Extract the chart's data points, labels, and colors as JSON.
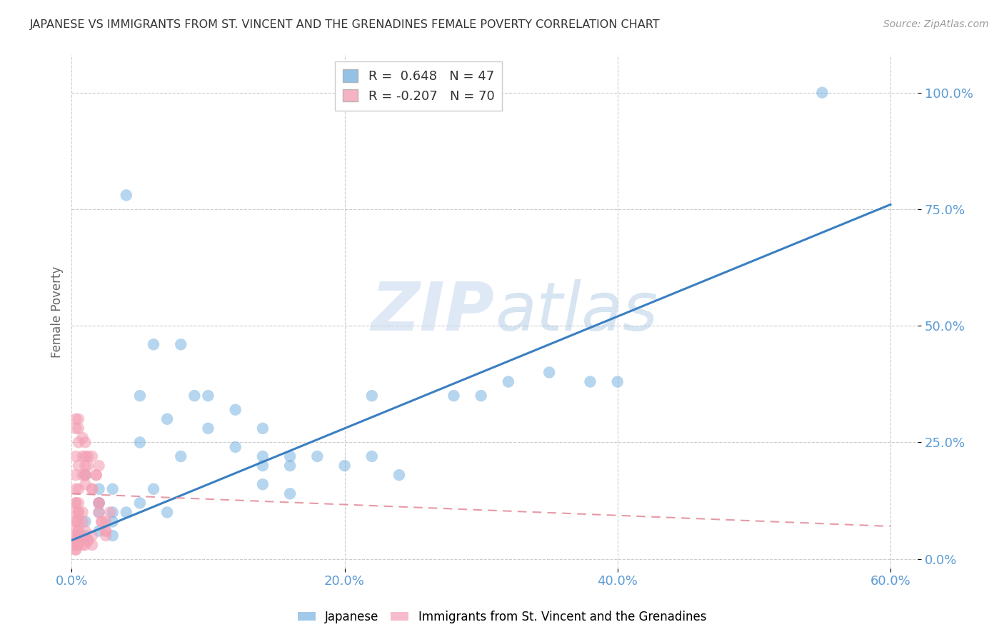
{
  "title": "JAPANESE VS IMMIGRANTS FROM ST. VINCENT AND THE GRENADINES FEMALE POVERTY CORRELATION CHART",
  "source": "Source: ZipAtlas.com",
  "xlabel_ticks": [
    "0.0%",
    "20.0%",
    "40.0%",
    "60.0%"
  ],
  "ylabel_ticks": [
    "0.0%",
    "25.0%",
    "50.0%",
    "75.0%",
    "100.0%"
  ],
  "ylabel": "Female Poverty",
  "xlim": [
    0.0,
    0.62
  ],
  "ylim": [
    -0.02,
    1.08
  ],
  "watermark_zip": "ZIP",
  "watermark_atlas": "atlas",
  "legend_r1_label": "R = ",
  "legend_r1_val": "0.648",
  "legend_r1_n": "N = 47",
  "legend_r2_label": "R = ",
  "legend_r2_val": "-0.207",
  "legend_r2_n": "N = 70",
  "blue_color": "#7ab3e0",
  "pink_color": "#f4a0b5",
  "line_blue": "#3a7fc1",
  "line_pink": "#e08090",
  "japanese_x": [
    0.02,
    0.04,
    0.01,
    0.02,
    0.03,
    0.05,
    0.02,
    0.01,
    0.03,
    0.02,
    0.07,
    0.08,
    0.05,
    0.09,
    0.1,
    0.12,
    0.14,
    0.08,
    0.1,
    0.12,
    0.14,
    0.16,
    0.14,
    0.16,
    0.18,
    0.2,
    0.22,
    0.28,
    0.3,
    0.32,
    0.35,
    0.38,
    0.4,
    0.22,
    0.24,
    0.01,
    0.02,
    0.03,
    0.04,
    0.05,
    0.06,
    0.07,
    0.55,
    0.14,
    0.16,
    0.06,
    0.03
  ],
  "japanese_y": [
    0.15,
    0.78,
    0.18,
    0.12,
    0.08,
    0.25,
    0.1,
    0.05,
    0.15,
    0.06,
    0.3,
    0.46,
    0.35,
    0.35,
    0.35,
    0.32,
    0.22,
    0.22,
    0.28,
    0.24,
    0.2,
    0.22,
    0.28,
    0.2,
    0.22,
    0.2,
    0.35,
    0.35,
    0.35,
    0.38,
    0.4,
    0.38,
    0.38,
    0.22,
    0.18,
    0.08,
    0.12,
    0.1,
    0.1,
    0.12,
    0.15,
    0.1,
    1.0,
    0.16,
    0.14,
    0.46,
    0.05
  ],
  "vincent_x": [
    0.003,
    0.005,
    0.008,
    0.01,
    0.01,
    0.01,
    0.012,
    0.015,
    0.015,
    0.018,
    0.02,
    0.02,
    0.02,
    0.022,
    0.025,
    0.025,
    0.025,
    0.028,
    0.003,
    0.005,
    0.005,
    0.008,
    0.01,
    0.01,
    0.012,
    0.015,
    0.018,
    0.02,
    0.022,
    0.025,
    0.003,
    0.005,
    0.008,
    0.01,
    0.012,
    0.015,
    0.003,
    0.005,
    0.008,
    0.01,
    0.012,
    0.015,
    0.003,
    0.005,
    0.008,
    0.01,
    0.003,
    0.005,
    0.003,
    0.005,
    0.008,
    0.003,
    0.005,
    0.003,
    0.005,
    0.003,
    0.005,
    0.003,
    0.005,
    0.003,
    0.005,
    0.008,
    0.003,
    0.005,
    0.003,
    0.003,
    0.005,
    0.003,
    0.005,
    0.003
  ],
  "vincent_y": [
    0.28,
    0.3,
    0.26,
    0.25,
    0.22,
    0.18,
    0.2,
    0.22,
    0.15,
    0.18,
    0.2,
    0.12,
    0.1,
    0.08,
    0.06,
    0.05,
    0.08,
    0.1,
    0.3,
    0.28,
    0.25,
    0.22,
    0.2,
    0.18,
    0.22,
    0.15,
    0.18,
    0.12,
    0.08,
    0.06,
    0.12,
    0.1,
    0.08,
    0.06,
    0.04,
    0.03,
    0.08,
    0.06,
    0.04,
    0.03,
    0.04,
    0.05,
    0.22,
    0.2,
    0.18,
    0.16,
    0.05,
    0.04,
    0.03,
    0.05,
    0.03,
    0.06,
    0.04,
    0.08,
    0.06,
    0.1,
    0.08,
    0.12,
    0.1,
    0.15,
    0.12,
    0.1,
    0.18,
    0.15,
    0.04,
    0.03,
    0.04,
    0.02,
    0.03,
    0.02
  ],
  "blue_trendline_x": [
    0.0,
    0.6
  ],
  "blue_trendline_y": [
    0.04,
    0.76
  ],
  "pink_trendline_x": [
    0.0,
    0.6
  ],
  "pink_trendline_y": [
    0.14,
    0.07
  ],
  "grid_color": "#cccccc",
  "title_color": "#333333",
  "tick_color": "#5b9bd5",
  "ylabel_color": "#666666"
}
